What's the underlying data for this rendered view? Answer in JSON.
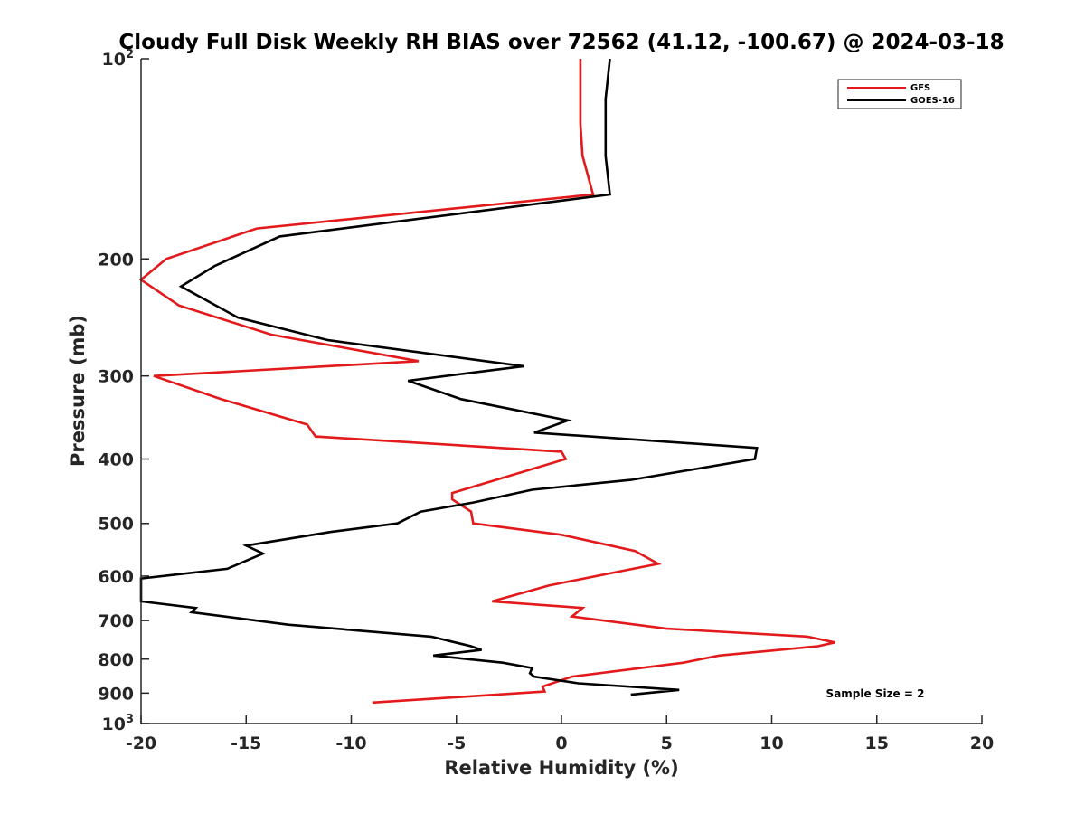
{
  "chart_data": {
    "type": "line",
    "title": "Cloudy Full Disk Weekly RH BIAS over 72562 (41.12, -100.67) @ 2024-03-18",
    "xlabel": "Relative Humidity (%)",
    "ylabel": "Pressure (mb)",
    "xlim": [
      -20,
      20
    ],
    "ylim": [
      100,
      1000
    ],
    "y_scale": "log",
    "y_reversed": true,
    "grid": false,
    "legend_position": "top-right",
    "x_ticks": [
      -20,
      -15,
      -10,
      -5,
      0,
      5,
      10,
      15,
      20
    ],
    "x_tick_labels": [
      "-20",
      "-15",
      "-10",
      "-5",
      "0",
      "5",
      "10",
      "15",
      "20"
    ],
    "y_ticks": [
      100,
      200,
      300,
      400,
      500,
      600,
      700,
      800,
      900,
      1000
    ],
    "y_tick_labels": [
      {
        "base": "10",
        "exp": "2"
      },
      {
        "base": "200",
        "exp": ""
      },
      {
        "base": "300",
        "exp": ""
      },
      {
        "base": "400",
        "exp": ""
      },
      {
        "base": "500",
        "exp": ""
      },
      {
        "base": "600",
        "exp": ""
      },
      {
        "base": "700",
        "exp": ""
      },
      {
        "base": "800",
        "exp": ""
      },
      {
        "base": "900",
        "exp": ""
      },
      {
        "base": "10",
        "exp": "3"
      }
    ],
    "annotation": "Sample Size = 2",
    "series": [
      {
        "name": "GFS",
        "color": "#e31a1c",
        "points": [
          [
            0.9,
            100
          ],
          [
            0.9,
            115
          ],
          [
            0.9,
            125
          ],
          [
            1.0,
            140
          ],
          [
            1.5,
            160
          ],
          [
            -14.5,
            180
          ],
          [
            -18.8,
            200
          ],
          [
            -20.0,
            215
          ],
          [
            -18.2,
            235
          ],
          [
            -13.8,
            260
          ],
          [
            -6.8,
            285
          ],
          [
            -19.4,
            300
          ],
          [
            -16.2,
            325
          ],
          [
            -12.1,
            355
          ],
          [
            -11.7,
            370
          ],
          [
            0.0,
            390
          ],
          [
            0.2,
            400
          ],
          [
            -5.2,
            450
          ],
          [
            -5.2,
            460
          ],
          [
            -4.3,
            480
          ],
          [
            -4.2,
            500
          ],
          [
            0.0,
            520
          ],
          [
            3.5,
            550
          ],
          [
            4.6,
            575
          ],
          [
            2.8,
            590
          ],
          [
            -0.6,
            620
          ],
          [
            -3.3,
            655
          ],
          [
            1.0,
            670
          ],
          [
            0.5,
            690
          ],
          [
            5.0,
            720
          ],
          [
            11.7,
            740
          ],
          [
            13.0,
            755
          ],
          [
            12.2,
            765
          ],
          [
            7.5,
            790
          ],
          [
            5.8,
            810
          ],
          [
            0.5,
            850
          ],
          [
            -0.9,
            880
          ],
          [
            -0.8,
            895
          ],
          [
            -9.0,
            930
          ]
        ]
      },
      {
        "name": "GOES-16",
        "color": "#000000",
        "points": [
          [
            2.3,
            100
          ],
          [
            2.1,
            115
          ],
          [
            2.1,
            130
          ],
          [
            2.1,
            140
          ],
          [
            2.3,
            160
          ],
          [
            -13.4,
            185
          ],
          [
            -16.5,
            205
          ],
          [
            -18.1,
            220
          ],
          [
            -15.4,
            245
          ],
          [
            -11.1,
            265
          ],
          [
            -1.8,
            290
          ],
          [
            -7.3,
            305
          ],
          [
            -4.8,
            325
          ],
          [
            0.3,
            350
          ],
          [
            -1.3,
            365
          ],
          [
            9.3,
            385
          ],
          [
            9.2,
            400
          ],
          [
            3.3,
            430
          ],
          [
            -1.4,
            445
          ],
          [
            -4.2,
            465
          ],
          [
            -6.7,
            480
          ],
          [
            -7.8,
            500
          ],
          [
            -11.0,
            515
          ],
          [
            -15.0,
            540
          ],
          [
            -14.2,
            555
          ],
          [
            -15.9,
            585
          ],
          [
            -20.0,
            605
          ],
          [
            -20.0,
            655
          ],
          [
            -17.4,
            670
          ],
          [
            -17.6,
            680
          ],
          [
            -13.0,
            710
          ],
          [
            -6.2,
            740
          ],
          [
            -4.3,
            765
          ],
          [
            -3.8,
            775
          ],
          [
            -6.1,
            790
          ],
          [
            -2.8,
            810
          ],
          [
            -1.4,
            825
          ],
          [
            -1.5,
            840
          ],
          [
            -1.3,
            850
          ],
          [
            0.8,
            870
          ],
          [
            5.6,
            890
          ],
          [
            3.3,
            905
          ]
        ]
      }
    ]
  }
}
